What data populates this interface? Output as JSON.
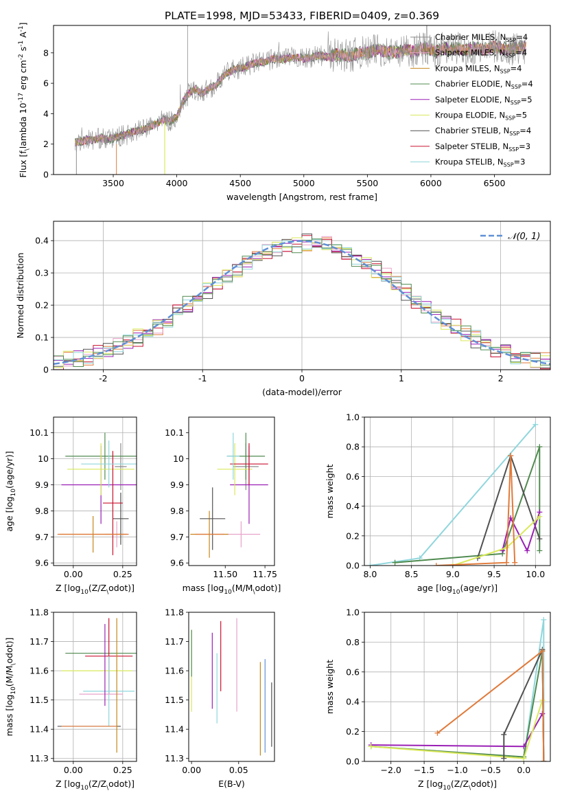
{
  "figure": {
    "title": "PLATE=1998, MJD=53433, FIBERID=0409, z=0.369"
  },
  "legend_spectrum": [
    {
      "name": "Chabrier MILES",
      "nssp": "4",
      "color": "#8c8c8c"
    },
    {
      "name": "Salpeter MILES",
      "nssp": "4",
      "color": "#e9a3c9"
    },
    {
      "name": "Kroupa MILES",
      "nssp": "4",
      "color": "#c6861a"
    },
    {
      "name": "Chabrier ELODIE",
      "nssp": "4",
      "color": "#4f8a4f"
    },
    {
      "name": "Salpeter ELODIE",
      "nssp": "5",
      "color": "#9a1fb5"
    },
    {
      "name": "Kroupa ELODIE",
      "nssp": "5",
      "color": "#d9e85a"
    },
    {
      "name": "Chabrier STELIB",
      "nssp": "4",
      "color": "#505050"
    },
    {
      "name": "Salpeter STELIB",
      "nssp": "3",
      "color": "#c8102e"
    },
    {
      "name": "Kroupa STELIB",
      "nssp": "3",
      "color": "#8fd6dc"
    }
  ],
  "chart_data": [
    {
      "id": "spectrum",
      "type": "line",
      "xlabel": "wavelength [Angstrom, rest frame]",
      "ylabel": "Flux [f$_\\lambda$ 10$^{-17}$ erg cm$^{-2}$ s$^{-1}$ A$^{-1}$]",
      "xlim": [
        3030,
        6940
      ],
      "ylim": [
        0,
        9.8
      ],
      "xticks": [
        3500,
        4000,
        4500,
        5000,
        5500,
        6000,
        6500
      ],
      "yticks": [
        0,
        2,
        4,
        6,
        8
      ],
      "legend_loc": "upper right",
      "x": [
        3200,
        3250,
        3300,
        3350,
        3400,
        3450,
        3500,
        3550,
        3600,
        3650,
        3700,
        3750,
        3800,
        3850,
        3900,
        3950,
        4000,
        4050,
        4100,
        4150,
        4200,
        4250,
        4300,
        4350,
        4400,
        4450,
        4500,
        4550,
        4600,
        4650,
        4700,
        4750,
        4800,
        4850,
        4900,
        4950,
        5000,
        5050,
        5100,
        5150,
        5200,
        5250,
        5300,
        5350,
        5400,
        5450,
        5500,
        5550,
        5600,
        5650,
        5700,
        5750,
        5800,
        5850,
        5900,
        5950,
        6000,
        6050,
        6100,
        6150,
        6200,
        6250,
        6300,
        6350,
        6400,
        6450,
        6500,
        6550,
        6600,
        6650,
        6700,
        6750
      ],
      "y": [
        2.1,
        2.2,
        2.3,
        2.3,
        2.4,
        2.3,
        2.4,
        2.5,
        2.6,
        2.8,
        2.9,
        3.0,
        3.2,
        3.4,
        3.6,
        3.5,
        3.8,
        4.8,
        5.4,
        5.6,
        5.3,
        5.7,
        5.8,
        6.3,
        6.7,
        6.9,
        7.0,
        7.1,
        7.3,
        7.4,
        7.4,
        7.6,
        7.6,
        7.6,
        7.7,
        7.7,
        7.6,
        7.7,
        7.8,
        7.8,
        7.7,
        7.9,
        7.9,
        7.8,
        7.9,
        8.0,
        8.0,
        8.1,
        8.2,
        8.0,
        8.1,
        8.0,
        8.2,
        8.1,
        8.2,
        8.3,
        8.2,
        8.1,
        8.3,
        8.2,
        8.3,
        8.2,
        8.2,
        8.3,
        8.2,
        8.3,
        8.4,
        8.3,
        8.2,
        8.3,
        8.3,
        8.4
      ]
    },
    {
      "id": "residuals",
      "type": "line",
      "xlabel": "(data-model)/error",
      "ylabel": "Normed distribution",
      "xlim": [
        -2.5,
        2.5
      ],
      "ylim": [
        0,
        0.46
      ],
      "xticks": [
        -2,
        -1,
        0,
        1,
        2
      ],
      "yticks": [
        0.0,
        0.1,
        0.2,
        0.3,
        0.4
      ],
      "legend_loc": "upper right",
      "series": [
        {
          "name": "$\\mathcal{N}(0,1)$",
          "color": "#5f8fd6",
          "style": "dashed"
        }
      ],
      "hist_edges": [
        -2.5,
        -2.4,
        -2.3,
        -2.2,
        -2.1,
        -2.0,
        -1.9,
        -1.8,
        -1.7,
        -1.6,
        -1.5,
        -1.4,
        -1.3,
        -1.2,
        -1.1,
        -1.0,
        -0.9,
        -0.8,
        -0.7,
        -0.6,
        -0.5,
        -0.4,
        -0.3,
        -0.2,
        -0.1,
        0.0,
        0.1,
        0.2,
        0.3,
        0.4,
        0.5,
        0.6,
        0.7,
        0.8,
        0.9,
        1.0,
        1.1,
        1.2,
        1.3,
        1.4,
        1.5,
        1.6,
        1.7,
        1.8,
        1.9,
        2.0,
        2.1,
        2.2,
        2.3,
        2.4,
        2.5
      ],
      "hist_values": [
        0.02,
        0.03,
        0.035,
        0.04,
        0.05,
        0.06,
        0.07,
        0.085,
        0.1,
        0.115,
        0.135,
        0.155,
        0.175,
        0.2,
        0.22,
        0.245,
        0.27,
        0.29,
        0.31,
        0.33,
        0.35,
        0.365,
        0.375,
        0.385,
        0.39,
        0.395,
        0.39,
        0.385,
        0.375,
        0.36,
        0.345,
        0.33,
        0.31,
        0.29,
        0.265,
        0.24,
        0.215,
        0.195,
        0.17,
        0.15,
        0.13,
        0.11,
        0.095,
        0.08,
        0.065,
        0.055,
        0.045,
        0.04,
        0.03,
        0.025
      ]
    },
    {
      "id": "age-vs-Z",
      "type": "scatter",
      "xlabel": "Z [log$_{10}$($Z/Z_\\odot$)]",
      "ylabel": "age  [log$_{10}$($age/yr$)]",
      "xlim": [
        -0.1,
        0.32
      ],
      "ylim": [
        9.59,
        10.16
      ],
      "xticks": [
        "0.00",
        "0.25"
      ],
      "yticks": [
        9.6,
        9.7,
        9.8,
        9.9,
        10.0,
        10.1
      ],
      "points": [
        {
          "x": 0.24,
          "y": 9.97,
          "xerr": 0.03,
          "yerr": 0.09,
          "color": "#8c8c8c"
        },
        {
          "x": 0.22,
          "y": 9.71,
          "xerr": 0.06,
          "yerr": 0.05,
          "color": "#e9a3c9"
        },
        {
          "x": 0.1,
          "y": 9.71,
          "xerr": 0.17,
          "yerr": 0.07,
          "color": "#c6861a"
        },
        {
          "x": 0.16,
          "y": 10.01,
          "xerr": 0.2,
          "yerr": 0.09,
          "color": "#4f8a4f"
        },
        {
          "x": 0.14,
          "y": 9.9,
          "xerr": 0.2,
          "yerr": 0.15,
          "color": "#9a1fb5"
        },
        {
          "x": 0.14,
          "y": 9.96,
          "xerr": 0.17,
          "yerr": 0.1,
          "color": "#d9e85a"
        },
        {
          "x": 0.24,
          "y": 9.77,
          "xerr": 0.04,
          "yerr": 0.1,
          "color": "#505050"
        },
        {
          "x": 0.2,
          "y": 9.83,
          "xerr": 0.05,
          "yerr": 0.2,
          "color": "#c8102e"
        },
        {
          "x": 0.18,
          "y": 9.98,
          "xerr": 0.14,
          "yerr": 0.09,
          "color": "#8fd6dc"
        },
        {
          "x": 0.1,
          "y": 9.71,
          "xerr": 0.18,
          "yerr": 0.0,
          "color": "#e07a3a"
        }
      ]
    },
    {
      "id": "age-vs-mass",
      "type": "scatter",
      "xlabel": "mass [log$_{10}$($M/M_\\odot$)]",
      "ylabel": "",
      "xlim": [
        11.27,
        11.81
      ],
      "ylim": [
        9.59,
        10.16
      ],
      "xticks": [
        "11.50",
        "11.75"
      ],
      "yticks": [
        9.6,
        9.7,
        9.8,
        9.9,
        10.0,
        10.1
      ],
      "points": [
        {
          "x": 11.63,
          "y": 9.97,
          "xerr": 0.08,
          "yerr": 0.09,
          "color": "#8c8c8c"
        },
        {
          "x": 11.6,
          "y": 9.71,
          "xerr": 0.12,
          "yerr": 0.05,
          "color": "#e9a3c9"
        },
        {
          "x": 11.4,
          "y": 9.71,
          "xerr": 0.12,
          "yerr": 0.09,
          "color": "#c6861a"
        },
        {
          "x": 11.63,
          "y": 10.01,
          "xerr": 0.12,
          "yerr": 0.09,
          "color": "#4f8a4f"
        },
        {
          "x": 11.65,
          "y": 9.9,
          "xerr": 0.12,
          "yerr": 0.15,
          "color": "#9a1fb5"
        },
        {
          "x": 11.56,
          "y": 9.96,
          "xerr": 0.11,
          "yerr": 0.1,
          "color": "#d9e85a"
        },
        {
          "x": 11.42,
          "y": 9.77,
          "xerr": 0.08,
          "yerr": 0.12,
          "color": "#505050"
        },
        {
          "x": 11.65,
          "y": 9.98,
          "xerr": 0.12,
          "yerr": 0.08,
          "color": "#c8102e"
        },
        {
          "x": 11.55,
          "y": 10.01,
          "xerr": 0.04,
          "yerr": 0.09,
          "color": "#8fd6dc"
        },
        {
          "x": 11.4,
          "y": 9.71,
          "xerr": 0.09,
          "yerr": 0.0,
          "color": "#e07a3a"
        }
      ]
    },
    {
      "id": "massweight-vs-age",
      "type": "line",
      "xlabel": "age  [log$_{10}$($age/yr$)]",
      "ylabel": "mass weight",
      "xlim": [
        7.93,
        10.18
      ],
      "ylim": [
        0,
        1.0
      ],
      "xticks": [
        "8.0",
        "8.5",
        "9.0",
        "9.5",
        "10.0"
      ],
      "yticks": [
        "0.0",
        "0.2",
        "0.4",
        "0.6",
        "0.8",
        "1.0"
      ],
      "series": [
        {
          "color": "#8fd6dc",
          "points": [
            [
              8.0,
              0.0
            ],
            [
              8.6,
              0.05
            ],
            [
              10.0,
              0.95
            ]
          ]
        },
        {
          "color": "#4f8a4f",
          "points": [
            [
              8.3,
              0.02
            ],
            [
              9.6,
              0.08
            ],
            [
              10.05,
              0.8
            ],
            [
              10.05,
              0.1
            ]
          ]
        },
        {
          "color": "#505050",
          "points": [
            [
              9.3,
              0.05
            ],
            [
              9.7,
              0.74
            ],
            [
              10.05,
              0.18
            ]
          ]
        },
        {
          "color": "#9a1fb5",
          "points": [
            [
              9.6,
              0.1
            ],
            [
              9.7,
              0.32
            ],
            [
              9.9,
              0.1
            ],
            [
              10.05,
              0.36
            ]
          ]
        },
        {
          "color": "#d9e85a",
          "points": [
            [
              9.0,
              0.0
            ],
            [
              9.65,
              0.12
            ],
            [
              10.05,
              0.33
            ]
          ]
        },
        {
          "color": "#e07a3a",
          "points": [
            [
              8.8,
              0.0
            ],
            [
              9.65,
              0.02
            ],
            [
              9.7,
              0.74
            ],
            [
              9.75,
              0.02
            ]
          ]
        }
      ]
    },
    {
      "id": "mass-vs-Z",
      "type": "scatter",
      "xlabel": "Z [log$_{10}$($Z/Z_\\odot$)]",
      "ylabel": "mass [log$_{10}$($M/M_\\odot$)]",
      "xlim": [
        -0.1,
        0.32
      ],
      "ylim": [
        11.29,
        11.8
      ],
      "xticks": [
        "0.00",
        "0.25"
      ],
      "yticks": [
        11.3,
        11.4,
        11.5,
        11.6,
        11.7,
        11.8
      ],
      "points": [
        {
          "x": 0.16,
          "y": 11.66,
          "xerr": 0.2,
          "yerr": 0.0,
          "color": "#4f8a4f"
        },
        {
          "x": 0.18,
          "y": 11.65,
          "xerr": 0.12,
          "yerr": 0.13,
          "color": "#c8102e"
        },
        {
          "x": 0.12,
          "y": 11.6,
          "xerr": 0.18,
          "yerr": 0.0,
          "color": "#d9e85a"
        },
        {
          "x": 0.18,
          "y": 11.53,
          "xerr": 0.13,
          "yerr": 0.12,
          "color": "#8fd6dc"
        },
        {
          "x": 0.14,
          "y": 11.52,
          "xerr": 0.11,
          "yerr": 0.0,
          "color": "#e9a3c9"
        },
        {
          "x": 0.16,
          "y": 11.62,
          "xerr": 0.0,
          "yerr": 0.14,
          "color": "#9a1fb5"
        },
        {
          "x": 0.08,
          "y": 11.41,
          "xerr": 0.16,
          "yerr": 0.0,
          "color": "#505050"
        },
        {
          "x": 0.08,
          "y": 11.41,
          "xerr": 0.14,
          "yerr": 0.0,
          "color": "#e07a3a"
        },
        {
          "x": 0.22,
          "y": 11.55,
          "xerr": 0.0,
          "yerr": 0.23,
          "color": "#c6861a"
        }
      ]
    },
    {
      "id": "mass-vs-EBV",
      "type": "scatter",
      "xlabel": "E(B-V)",
      "ylabel": "",
      "xlim": [
        -0.003,
        0.088
      ],
      "ylim": [
        11.29,
        11.8
      ],
      "xticks": [
        "0.00",
        "0.05"
      ],
      "yticks": [
        11.3,
        11.4,
        11.5,
        11.6,
        11.7,
        11.8
      ],
      "points": [
        {
          "x": 0.0,
          "y": 11.6,
          "yerr": 0.14,
          "color": "#d9e85a"
        },
        {
          "x": 0.0,
          "y": 11.66,
          "yerr": 0.08,
          "color": "#4f8a4f"
        },
        {
          "x": 0.022,
          "y": 11.6,
          "yerr": 0.13,
          "color": "#9a1fb5"
        },
        {
          "x": 0.027,
          "y": 11.54,
          "yerr": 0.12,
          "color": "#8fd6dc"
        },
        {
          "x": 0.031,
          "y": 11.65,
          "yerr": 0.12,
          "color": "#c8102e"
        },
        {
          "x": 0.048,
          "y": 11.62,
          "yerr": 0.16,
          "color": "#e9a3c9"
        },
        {
          "x": 0.073,
          "y": 11.47,
          "yerr": 0.16,
          "color": "#c6861a"
        },
        {
          "x": 0.078,
          "y": 11.48,
          "yerr": 0.16,
          "color": "#5f8fd6"
        },
        {
          "x": 0.085,
          "y": 11.45,
          "yerr": 0.11,
          "color": "#505050"
        }
      ]
    },
    {
      "id": "massweight-vs-Z",
      "type": "line",
      "xlabel": "Z [log$_{10}$($Z/Z_\\odot$)]",
      "ylabel": "mass weight",
      "xlim": [
        -2.4,
        0.4
      ],
      "ylim": [
        0,
        1.0
      ],
      "xticks": [
        "−2.0",
        "−1.5",
        "−1.0",
        "−0.5",
        "0.0"
      ],
      "yticks": [
        "0.0",
        "0.2",
        "0.4",
        "0.6",
        "0.8",
        "1.0"
      ],
      "series": [
        {
          "color": "#8fd6dc",
          "points": [
            [
              0.0,
              0.02
            ],
            [
              0.3,
              0.95
            ],
            [
              0.3,
              0.0
            ]
          ]
        },
        {
          "color": "#4f8a4f",
          "points": [
            [
              -2.3,
              0.1
            ],
            [
              0.0,
              0.03
            ],
            [
              0.28,
              0.74
            ],
            [
              0.3,
              0.0
            ]
          ]
        },
        {
          "color": "#9a1fb5",
          "points": [
            [
              -2.3,
              0.11
            ],
            [
              0.0,
              0.1
            ],
            [
              0.28,
              0.32
            ]
          ]
        },
        {
          "color": "#d9e85a",
          "points": [
            [
              -2.3,
              0.1
            ],
            [
              0.0,
              0.02
            ],
            [
              0.28,
              0.41
            ]
          ]
        },
        {
          "color": "#505050",
          "points": [
            [
              -0.3,
              0.02
            ],
            [
              -0.3,
              0.18
            ],
            [
              0.28,
              0.75
            ],
            [
              0.3,
              0.0
            ]
          ]
        },
        {
          "color": "#e07a3a",
          "points": [
            [
              -1.3,
              0.19
            ],
            [
              0.28,
              0.74
            ],
            [
              0.3,
              0.0
            ]
          ]
        }
      ]
    }
  ]
}
